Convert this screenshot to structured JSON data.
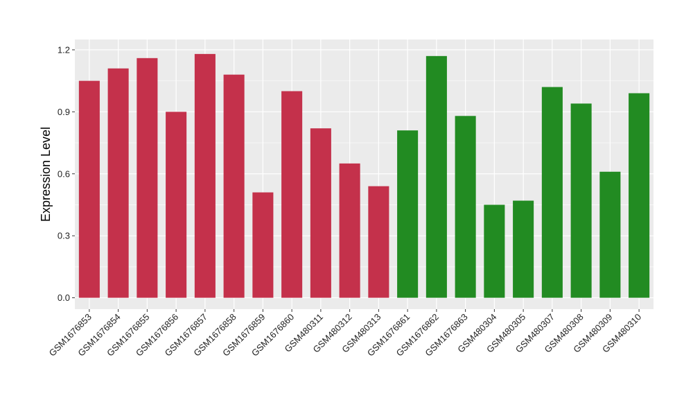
{
  "chart_data": {
    "type": "bar",
    "title": "",
    "xlabel": "",
    "ylabel": "Expression Level",
    "ylim": [
      -0.055,
      1.25
    ],
    "yticks": [
      0.0,
      0.3,
      0.6,
      0.9,
      1.2
    ],
    "ytick_labels": [
      "0.0",
      "0.3",
      "0.6",
      "0.9",
      "1.2"
    ],
    "grid": true,
    "legend": "none",
    "group_colors": {
      "red": "#C4314B",
      "green": "#228B22"
    },
    "background_color": "#EBEBEB",
    "categories": [
      "GSM1676853",
      "GSM1676854",
      "GSM1676855",
      "GSM1676856",
      "GSM1676857",
      "GSM1676858",
      "GSM1676859",
      "GSM1676860",
      "GSM480311",
      "GSM480312",
      "GSM480313",
      "GSM1676861",
      "GSM1676862",
      "GSM1676863",
      "GSM480304",
      "GSM480305",
      "GSM480307",
      "GSM480308",
      "GSM480309",
      "GSM480310"
    ],
    "values": [
      1.05,
      1.11,
      1.16,
      0.9,
      1.18,
      1.08,
      0.51,
      1.0,
      0.82,
      0.65,
      0.54,
      0.81,
      1.17,
      0.88,
      0.45,
      0.47,
      1.02,
      0.94,
      0.61,
      0.99
    ],
    "bar_groups": [
      "red",
      "red",
      "red",
      "red",
      "red",
      "red",
      "red",
      "red",
      "red",
      "red",
      "red",
      "green",
      "green",
      "green",
      "green",
      "green",
      "green",
      "green",
      "green",
      "green"
    ]
  }
}
